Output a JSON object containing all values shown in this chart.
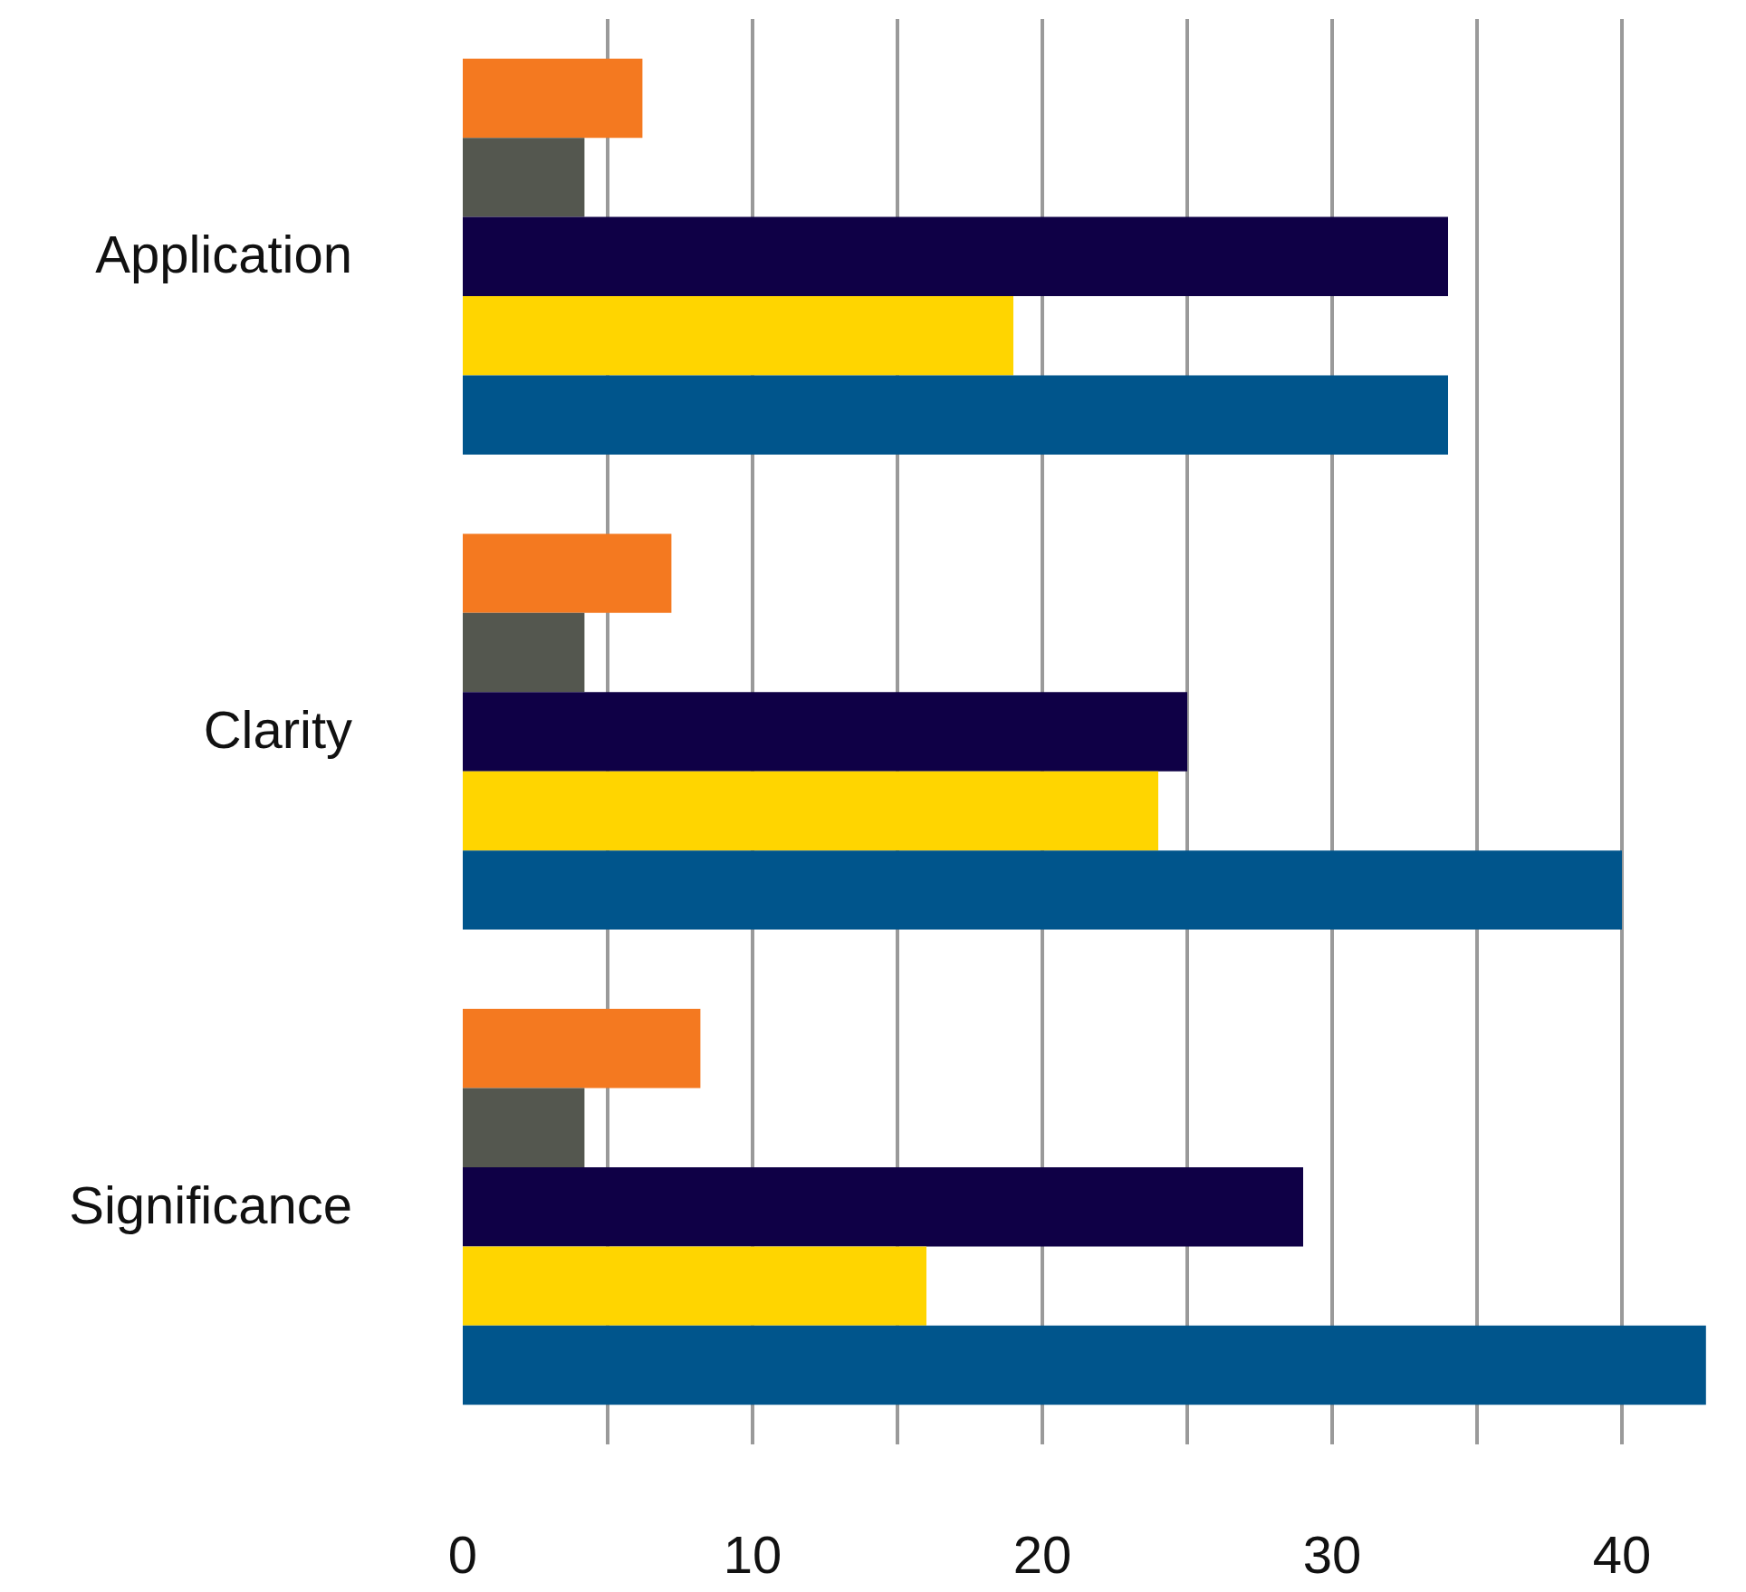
{
  "chart_data": {
    "type": "bar",
    "orientation": "horizontal",
    "categories": [
      "Application",
      "Clarity",
      "Significance"
    ],
    "series": [
      {
        "color": "#f47920",
        "values": [
          6.2,
          7.2,
          8.2
        ]
      },
      {
        "color": "#54574f",
        "values": [
          4.2,
          4.2,
          4.2
        ]
      },
      {
        "color": "#0f0046",
        "values": [
          34,
          25,
          29
        ]
      },
      {
        "color": "#ffd500",
        "values": [
          19,
          24,
          16
        ]
      },
      {
        "color": "#00558c",
        "values": [
          34,
          40,
          42.9
        ]
      }
    ],
    "xlim": [
      0,
      43
    ],
    "xticks": [
      0,
      {
        "value": 5,
        "label": null
      },
      10,
      {
        "value": 15,
        "label": null
      },
      20,
      {
        "value": 25,
        "label": null
      },
      30,
      {
        "value": 35,
        "label": null
      },
      40
    ],
    "grid": "x"
  }
}
